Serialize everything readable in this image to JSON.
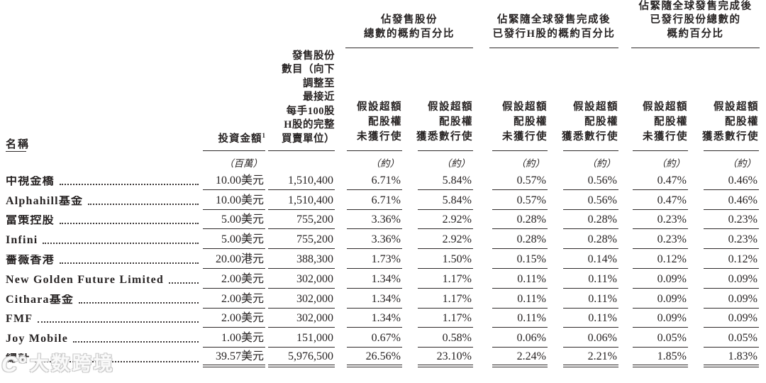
{
  "watermark": {
    "logo_glyph": "C°",
    "text": "大数跨境"
  },
  "table": {
    "groups": [
      {
        "lines": [
          "佔發售股份",
          "總數的概約百分比"
        ]
      },
      {
        "lines": [
          "佔緊隨全球發售完成後",
          "已發行H股的概約百分比"
        ]
      },
      {
        "lines": [
          "佔緊隨全球發售完成後",
          "已發行股份總數的",
          "概約百分比"
        ]
      }
    ],
    "headers": {
      "name": "名稱",
      "amount_label": "投資金額",
      "amount_footnote": "1",
      "amount_unit": "（百萬）",
      "shares_lines": [
        "發售股份",
        "數目（向下",
        "調整至",
        "最接近",
        "每手100股",
        "H股的完整",
        "買賣單位）"
      ],
      "sub_unexercised_lines": [
        "假設超額",
        "配股權",
        "未獲行使"
      ],
      "sub_exercised_lines": [
        "假設超額",
        "配股權",
        "獲悉數行使"
      ],
      "approx_note": "（約）"
    },
    "rows": [
      {
        "name": "中視金橋",
        "amount": "10.00美元",
        "shares": "1,510,400",
        "p1a": "6.71%",
        "p1b": "5.84%",
        "p2a": "0.57%",
        "p2b": "0.56%",
        "p3a": "0.47%",
        "p3b": "0.46%"
      },
      {
        "name": "Alphahill基金",
        "amount": "10.00美元",
        "shares": "1,510,400",
        "p1a": "6.71%",
        "p1b": "5.84%",
        "p2a": "0.57%",
        "p2b": "0.56%",
        "p3a": "0.47%",
        "p3b": "0.46%"
      },
      {
        "name": "富策控股",
        "amount": "5.00美元",
        "shares": "755,200",
        "p1a": "3.36%",
        "p1b": "2.92%",
        "p2a": "0.28%",
        "p2b": "0.28%",
        "p3a": "0.23%",
        "p3b": "0.23%"
      },
      {
        "name": "Infini",
        "amount": "5.00美元",
        "shares": "755,200",
        "p1a": "3.36%",
        "p1b": "2.92%",
        "p2a": "0.28%",
        "p2b": "0.28%",
        "p3a": "0.23%",
        "p3b": "0.23%"
      },
      {
        "name": "薔薇香港",
        "amount": "20.00港元",
        "shares": "388,300",
        "p1a": "1.73%",
        "p1b": "1.50%",
        "p2a": "0.15%",
        "p2b": "0.14%",
        "p3a": "0.12%",
        "p3b": "0.12%"
      },
      {
        "name": "New Golden Future Limited",
        "amount": "2.00美元",
        "shares": "302,000",
        "p1a": "1.34%",
        "p1b": "1.17%",
        "p2a": "0.11%",
        "p2b": "0.11%",
        "p3a": "0.09%",
        "p3b": "0.09%"
      },
      {
        "name": "Cithara基金",
        "amount": "2.00美元",
        "shares": "302,000",
        "p1a": "1.34%",
        "p1b": "1.17%",
        "p2a": "0.11%",
        "p2b": "0.11%",
        "p3a": "0.09%",
        "p3b": "0.09%"
      },
      {
        "name": "FMF",
        "amount": "2.00美元",
        "shares": "302,000",
        "p1a": "1.34%",
        "p1b": "1.17%",
        "p2a": "0.11%",
        "p2b": "0.11%",
        "p3a": "0.09%",
        "p3b": "0.09%"
      },
      {
        "name": "Joy Mobile",
        "amount": "1.00美元",
        "shares": "151,000",
        "p1a": "0.67%",
        "p1b": "0.58%",
        "p2a": "0.06%",
        "p2b": "0.06%",
        "p3a": "0.05%",
        "p3b": "0.05%"
      },
      {
        "name": "總計",
        "amount": "39.57美元",
        "shares": "5,976,500",
        "p1a": "26.56%",
        "p1b": "23.10%",
        "p2a": "2.24%",
        "p2b": "2.21%",
        "p3a": "1.85%",
        "p3b": "1.83%"
      }
    ]
  }
}
